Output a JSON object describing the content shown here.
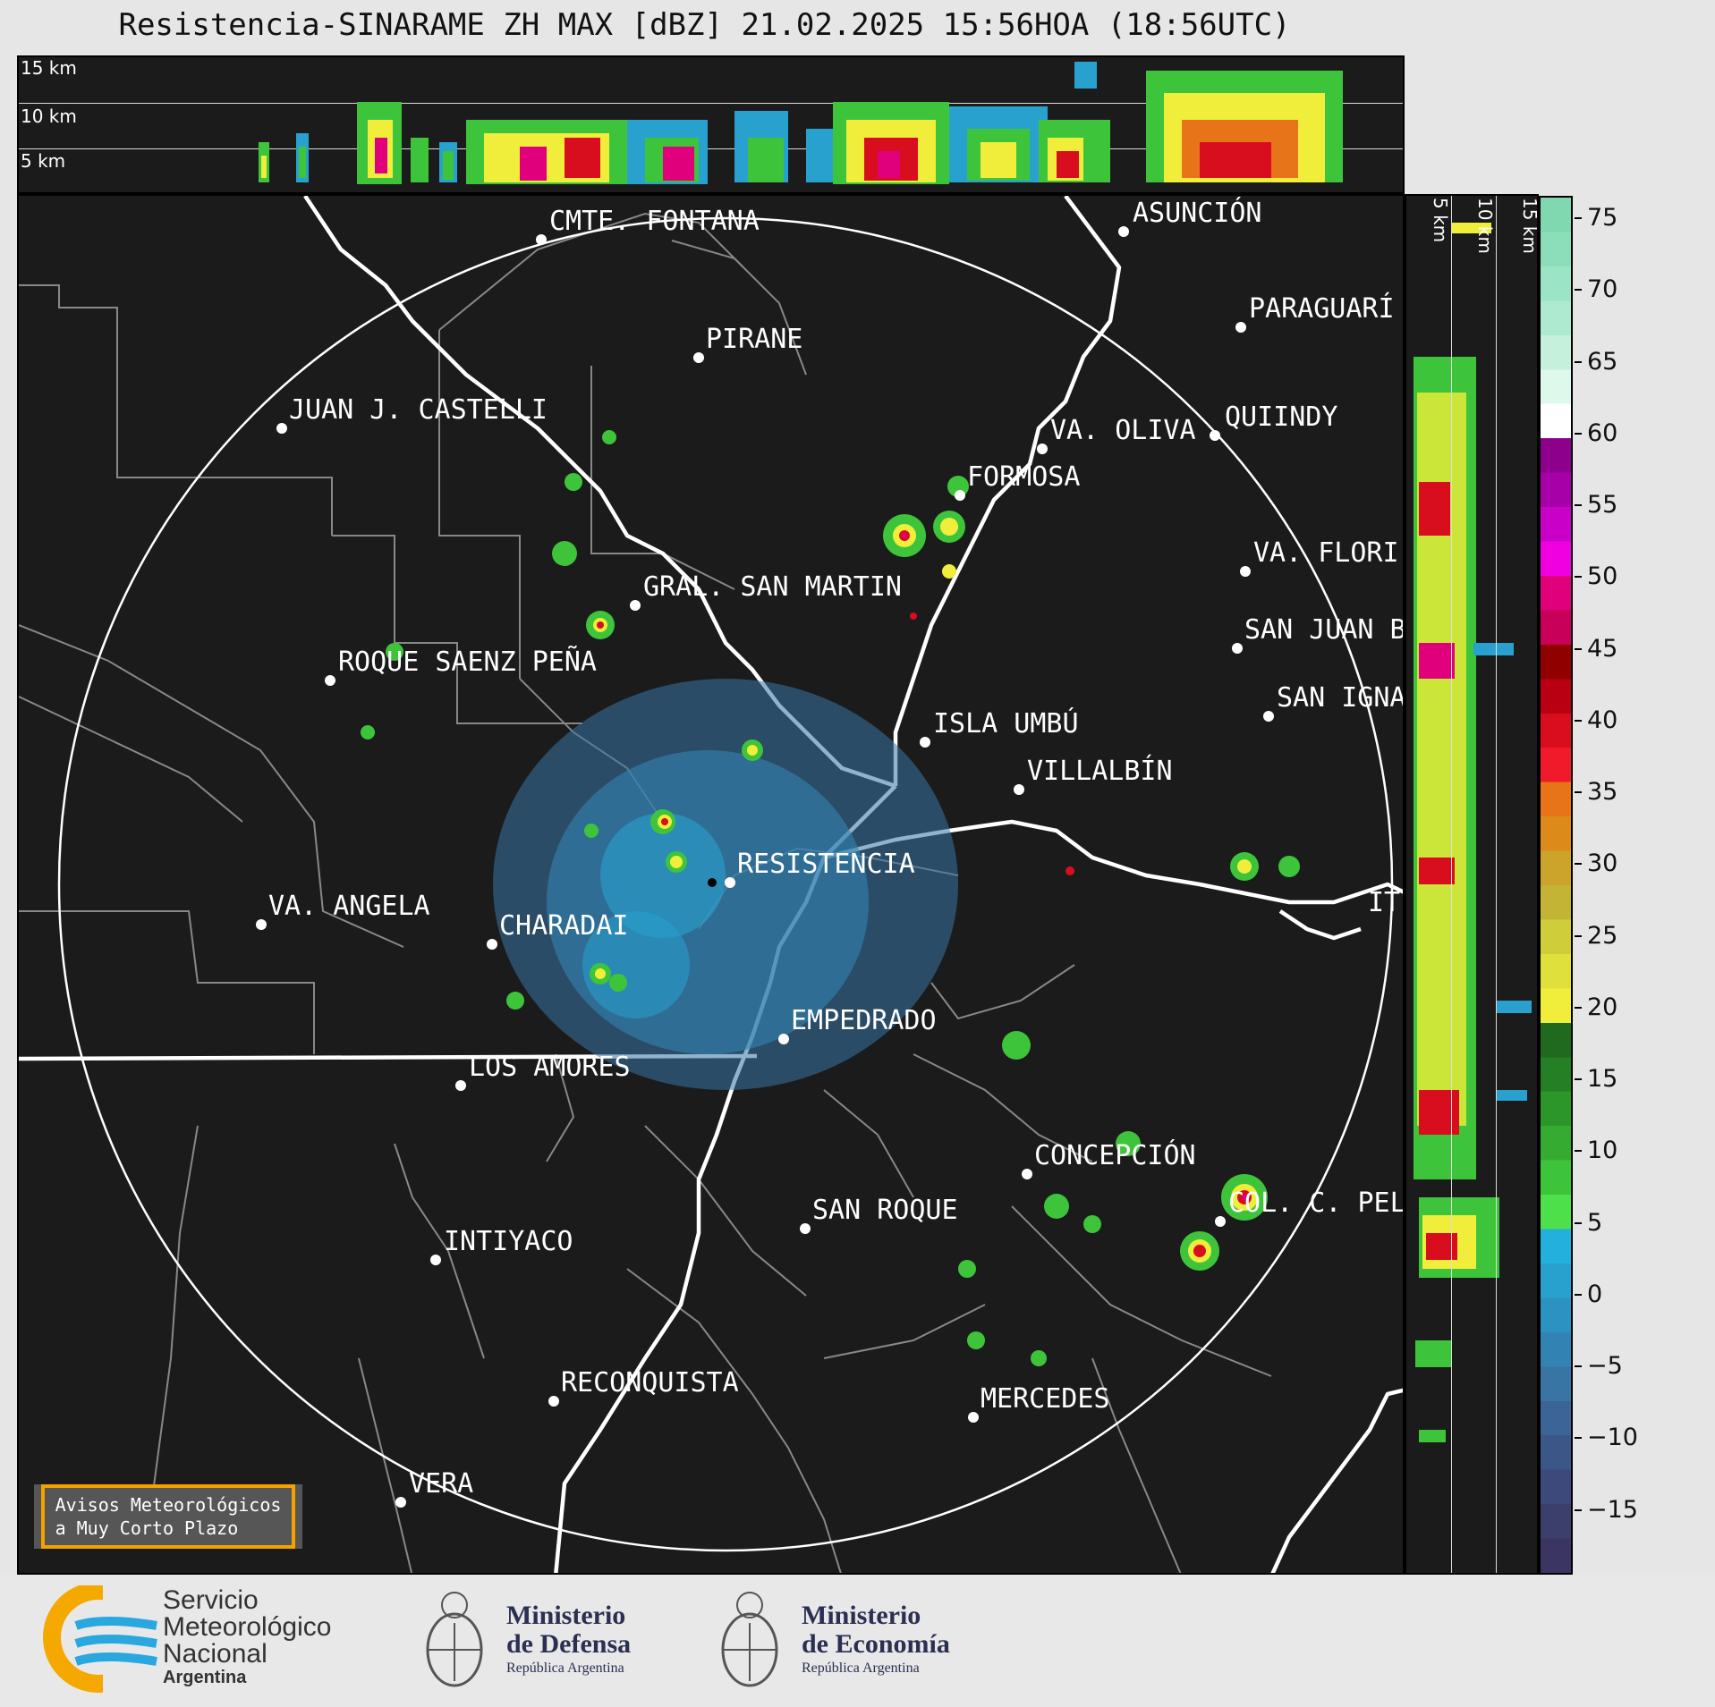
{
  "title": "Resistencia-SINARAME ZH MAX [dBZ] 21.02.2025 15:56HOA (18:56UTC)",
  "top_panel": {
    "height_labels": [
      "15 km",
      "10 km",
      "5 km"
    ]
  },
  "side_panel": {
    "height_labels": [
      "5 km",
      "10 km",
      "15 km"
    ]
  },
  "colorbar": {
    "unit": "dBZ",
    "tick_labels": [
      "75",
      "70",
      "65",
      "60",
      "55",
      "50",
      "45",
      "40",
      "35",
      "30",
      "25",
      "20",
      "15",
      "10",
      "5",
      "0",
      "−5",
      "−10",
      "−15"
    ],
    "colors": [
      "#3b3563",
      "#3c3f6c",
      "#3b4a7a",
      "#3a5787",
      "#3a6596",
      "#3874a4",
      "#3283b3",
      "#2c92c1",
      "#28a1cf",
      "#24b0dc",
      "#4ee04b",
      "#3ec43a",
      "#35ac31",
      "#2d962b",
      "#257f25",
      "#1f6a1f",
      "#f0ee3a",
      "#dfe03b",
      "#cfce3a",
      "#c3b436",
      "#cca42c",
      "#dc8a1a",
      "#e8741a",
      "#f01a2a",
      "#d80e1e",
      "#b80012",
      "#900000",
      "#c8005a",
      "#e0007c",
      "#f000e0",
      "#c800c8",
      "#a800a8",
      "#8c008c",
      "#ffffff",
      "#def8ec",
      "#c4f0dc",
      "#aeead0",
      "#9ce4c6",
      "#8cdeba",
      "#80d8b0"
    ]
  },
  "places": [
    {
      "name": "CMTE. FONTANA"
    },
    {
      "name": "ASUNCIÓN"
    },
    {
      "name": "PARAGUARÍ"
    },
    {
      "name": "PIRANE"
    },
    {
      "name": "JUAN J. CASTELLI"
    },
    {
      "name": "VA. OLIVA"
    },
    {
      "name": "QUIINDY"
    },
    {
      "name": "FORMOSA"
    },
    {
      "name": "VA. FLORI"
    },
    {
      "name": "GRAL. SAN MARTIN"
    },
    {
      "name": "SAN JUAN B"
    },
    {
      "name": "ROQUE SAENZ PEÑA"
    },
    {
      "name": "SAN IGNA"
    },
    {
      "name": "ISLA UMBÚ"
    },
    {
      "name": "VILLALBÍN"
    },
    {
      "name": "RESISTENCIA"
    },
    {
      "name": "VA. ANGELA"
    },
    {
      "name": "CHARADAI"
    },
    {
      "name": "IT"
    },
    {
      "name": "EMPEDRADO"
    },
    {
      "name": "LOS AMORES"
    },
    {
      "name": "CONCEPCIÓN"
    },
    {
      "name": "COL. C. PEL"
    },
    {
      "name": "SAN ROQUE"
    },
    {
      "name": "INTIYACO"
    },
    {
      "name": "RECONQUISTA"
    },
    {
      "name": "MERCEDES"
    },
    {
      "name": "VERA"
    }
  ],
  "warning_box": {
    "line1": "Avisos Meteorológicos",
    "line2": "a Muy Corto Plazo"
  },
  "logos": {
    "smn": {
      "line1": "Servicio",
      "line2": "Meteorológico",
      "line3": "Nacional",
      "line4": "Argentina"
    },
    "defensa": {
      "line1": "Ministerio",
      "line2": "de Defensa",
      "line3": "República Argentina"
    },
    "economia": {
      "line1": "Ministerio",
      "line2": "de Economía",
      "line3": "República Argentina"
    }
  }
}
